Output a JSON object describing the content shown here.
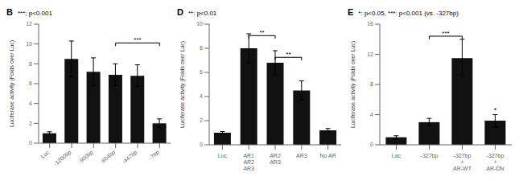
{
  "chart_data": [
    {
      "type": "bar",
      "title": "***; p<0.001",
      "ylabel": "Luciferase activity (Folds over Luc)",
      "categories": [
        "Luc",
        "-1200bp",
        "-900bp",
        "-604bp",
        "-447bp",
        "-7bp"
      ],
      "values": [
        1.0,
        8.5,
        7.2,
        6.9,
        6.8,
        2.0
      ],
      "errors": [
        0.15,
        1.8,
        1.4,
        1.1,
        1.1,
        0.45
      ],
      "color": "#111111",
      "ylim": [
        0,
        12
      ],
      "yticks": [
        0,
        2,
        4,
        6,
        8,
        10,
        12
      ],
      "grid": false,
      "annotations": [
        {
          "text": "B"
        },
        {
          "text": "***",
          "from": "-604bp",
          "to": "-7bp",
          "y": 9.8
        }
      ]
    },
    {
      "type": "bar",
      "title": "**: p<0.01",
      "ylabel": "Luciferase activity (Folds over Luc)",
      "categories": [
        "Luc",
        "AR1\nAR2\nAR3",
        "AR2\nAR3",
        "AR3",
        "No AR"
      ],
      "values": [
        1.0,
        8.0,
        6.8,
        4.5,
        1.2
      ],
      "errors": [
        0.1,
        1.2,
        1.0,
        0.8,
        0.15
      ],
      "color": "#111111",
      "ylim": [
        0,
        10
      ],
      "yticks": [
        0,
        2,
        4,
        6,
        8,
        10
      ],
      "grid": false,
      "annotations": [
        {
          "text": "D"
        },
        {
          "text": "**",
          "from": "AR1\nAR2\nAR3",
          "to": "AR2\nAR3",
          "y": 8.8
        },
        {
          "text": "**",
          "from": "AR2\nAR3",
          "to": "AR3",
          "y": 7.0
        }
      ]
    },
    {
      "type": "bar",
      "title": "*: p<0.05, ***: p<0.001 (vs. -327bp)",
      "ylabel": "Luciferase activity (Folds over Luc)",
      "categories": [
        "Lac",
        "-327bp",
        "-327bp\n+\nAR-WT",
        "-327bp\n+\nAR-DN"
      ],
      "values": [
        1.0,
        3.0,
        11.5,
        3.2
      ],
      "errors": [
        0.2,
        0.5,
        2.5,
        0.8
      ],
      "color": "#111111",
      "ylim": [
        0,
        16
      ],
      "yticks": [
        0,
        4,
        8,
        12,
        16
      ],
      "grid": false,
      "annotations": [
        {
          "text": "E"
        },
        {
          "text": "***",
          "from": "-327bp",
          "to": "-327bp\n+\nAR-WT",
          "y": 14.0
        },
        {
          "text": "*",
          "category": "-327bp\n+\nAR-DN"
        }
      ]
    }
  ]
}
